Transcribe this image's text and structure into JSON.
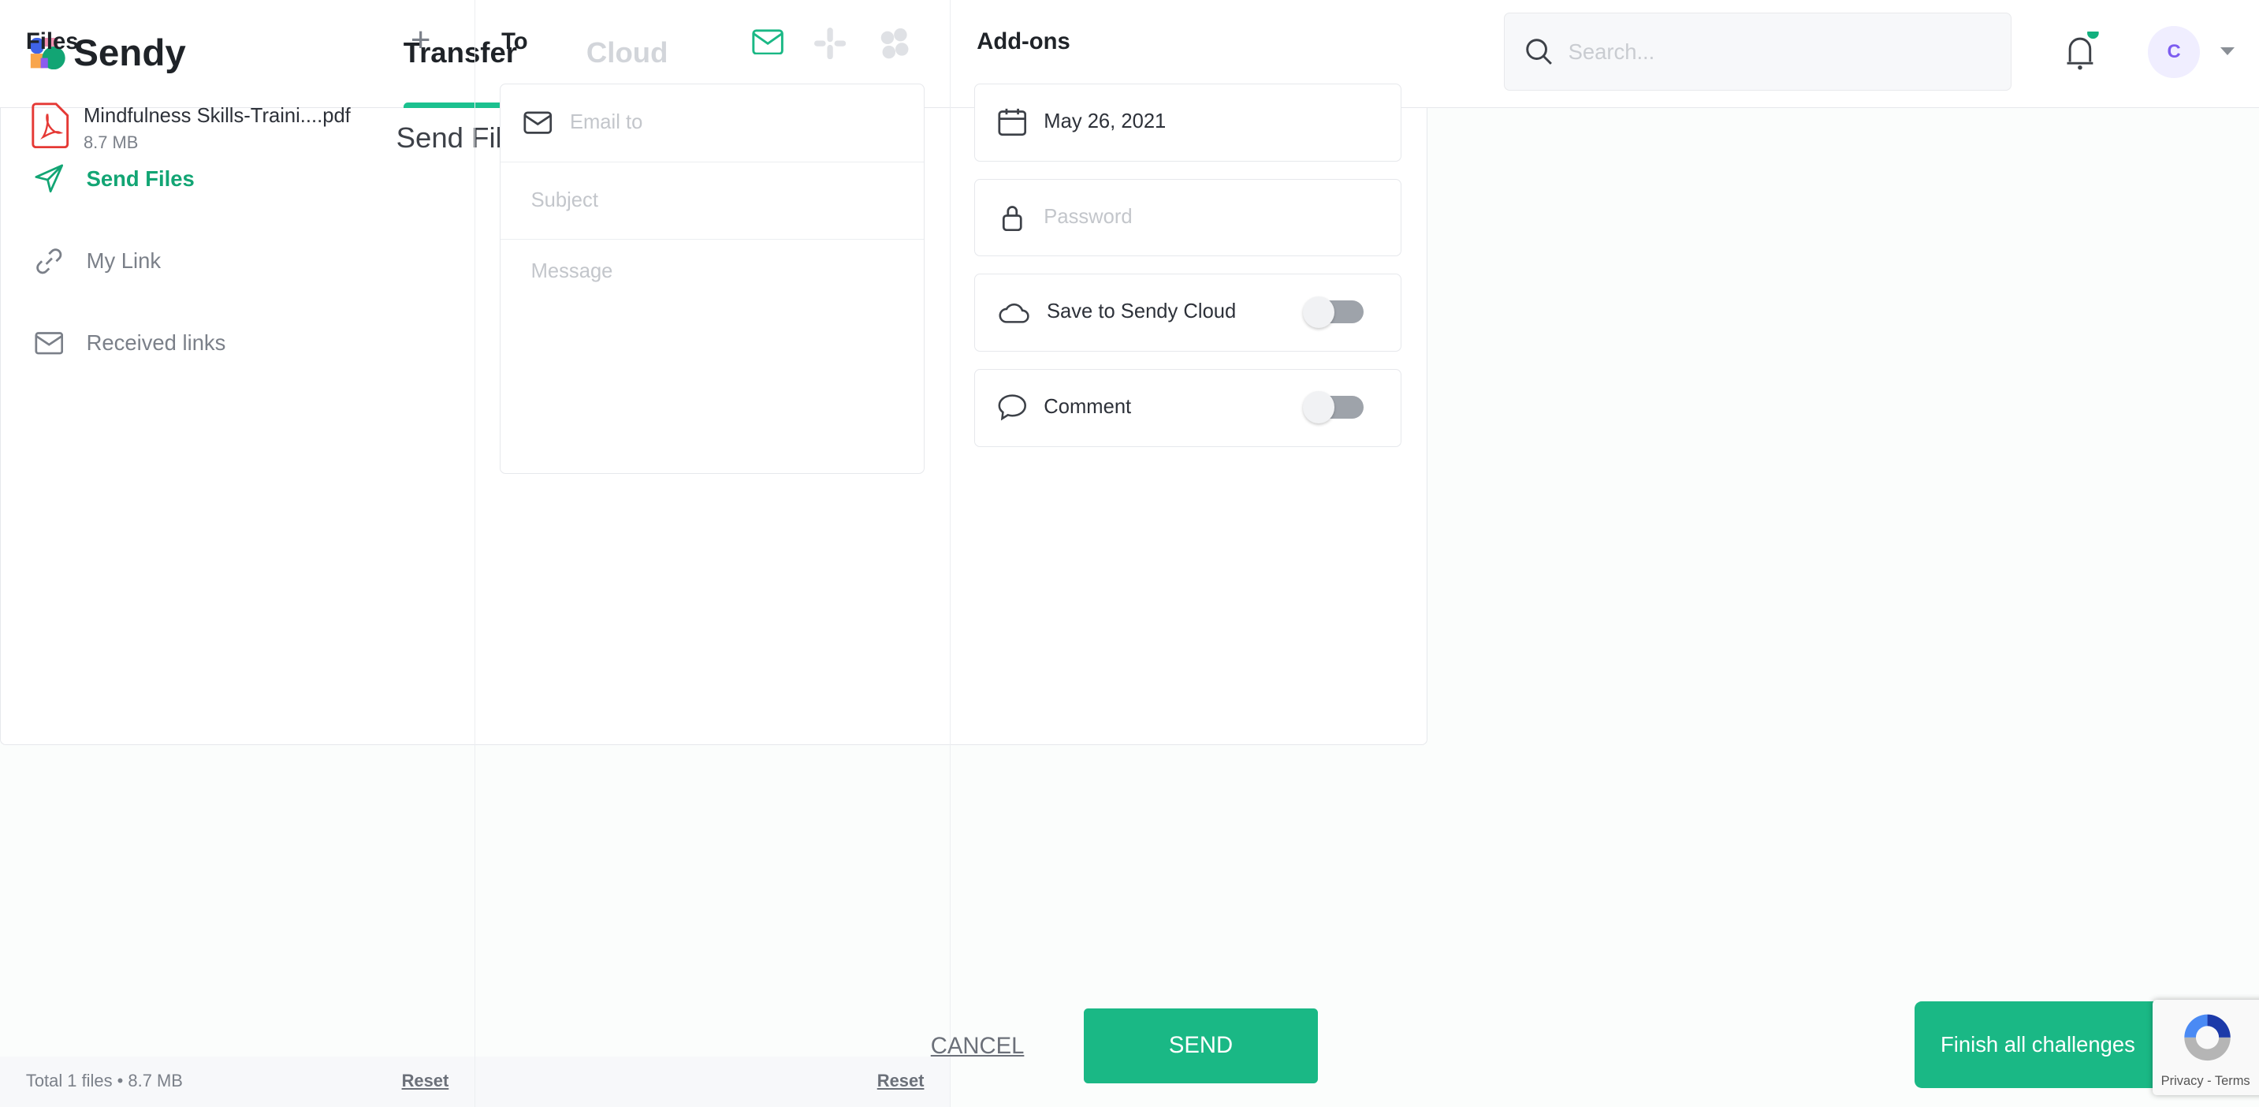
{
  "app": {
    "name": "Sendy"
  },
  "nav": {
    "tabs": [
      {
        "label": "Transfer",
        "active": true
      },
      {
        "label": "Cloud",
        "active": false
      }
    ]
  },
  "search": {
    "placeholder": "Search...",
    "value": ""
  },
  "user": {
    "avatar_initial": "C",
    "has_notification": true
  },
  "sidebar": {
    "items": [
      {
        "label": "Send Files",
        "icon": "send-icon",
        "active": true
      },
      {
        "label": "My Link",
        "icon": "link-icon"
      },
      {
        "label": "Received links",
        "icon": "mail-icon"
      }
    ]
  },
  "page": {
    "title": "Send Files"
  },
  "files": {
    "header": "Files",
    "items": [
      {
        "name": "Mindfulness Skills-Traini....pdf",
        "size": "8.7 MB",
        "type": "pdf"
      }
    ],
    "summary": "Total 1 files • 8.7 MB",
    "reset": "Reset"
  },
  "to": {
    "header": "To",
    "channels": [
      "email",
      "slack",
      "other"
    ],
    "active_channel": "email",
    "email_placeholder": "Email to",
    "subject_placeholder": "Subject",
    "message_placeholder": "Message",
    "reset": "Reset"
  },
  "addons": {
    "header": "Add-ons",
    "date": "May 26, 2021",
    "password_placeholder": "Password",
    "save_cloud": {
      "label": "Save to Sendy Cloud",
      "on": false
    },
    "comment": {
      "label": "Comment",
      "on": false
    }
  },
  "actions": {
    "cancel": "CANCEL",
    "send": "SEND",
    "finish": "Finish all challenges"
  },
  "recaptcha": {
    "links": "Privacy - Terms"
  },
  "colors": {
    "accent": "#1ab885",
    "pdf": "#e53935",
    "avatar_bg": "#f0eeff",
    "avatar_fg": "#7c5cf0"
  }
}
